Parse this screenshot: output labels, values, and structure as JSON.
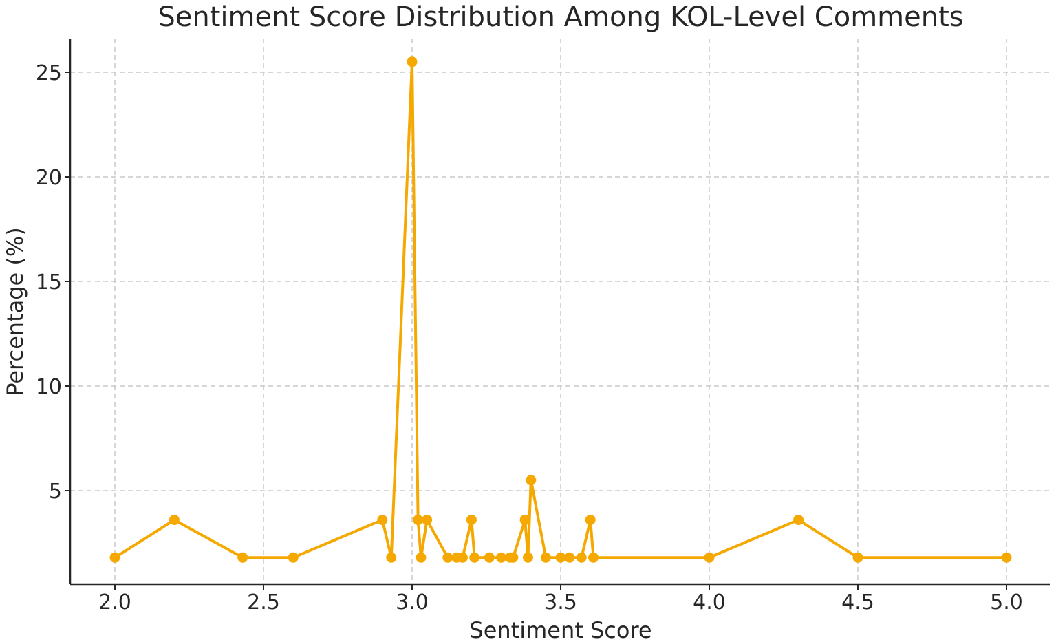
{
  "chart_data": {
    "type": "line",
    "title": "Sentiment Score Distribution Among KOL-Level Comments",
    "xlabel": "Sentiment Score",
    "ylabel": "Percentage (%)",
    "xlim": [
      1.85,
      5.15
    ],
    "ylim": [
      0,
      26.5
    ],
    "xticks": [
      2.0,
      2.5,
      3.0,
      3.5,
      4.0,
      4.5,
      5.0
    ],
    "xtick_labels": [
      "2.0",
      "2.5",
      "3.0",
      "3.5",
      "4.0",
      "4.5",
      "5.0"
    ],
    "yticks": [
      5,
      10,
      15,
      20,
      25
    ],
    "ytick_labels": [
      "5",
      "10",
      "15",
      "20",
      "25"
    ],
    "grid": true,
    "legend": "none",
    "color": "#f5a800",
    "series": [
      {
        "x": [
          2.0,
          2.2,
          2.43,
          2.6,
          2.9,
          2.93,
          3.0,
          3.02,
          3.03,
          3.05,
          3.12,
          3.15,
          3.17,
          3.2,
          3.21,
          3.26,
          3.3,
          3.33,
          3.34,
          3.38,
          3.39,
          3.4,
          3.45,
          3.5,
          3.53,
          3.57,
          3.6,
          3.61,
          4.0,
          4.3,
          4.5,
          5.0
        ],
        "y": [
          1.8,
          3.6,
          1.8,
          1.8,
          3.6,
          1.8,
          25.5,
          3.6,
          1.8,
          3.6,
          1.8,
          1.8,
          1.8,
          3.6,
          1.8,
          1.8,
          1.8,
          1.8,
          1.8,
          3.6,
          1.8,
          5.5,
          1.8,
          1.8,
          1.8,
          1.8,
          3.6,
          1.8,
          1.8,
          3.6,
          1.8,
          1.8
        ]
      }
    ]
  }
}
